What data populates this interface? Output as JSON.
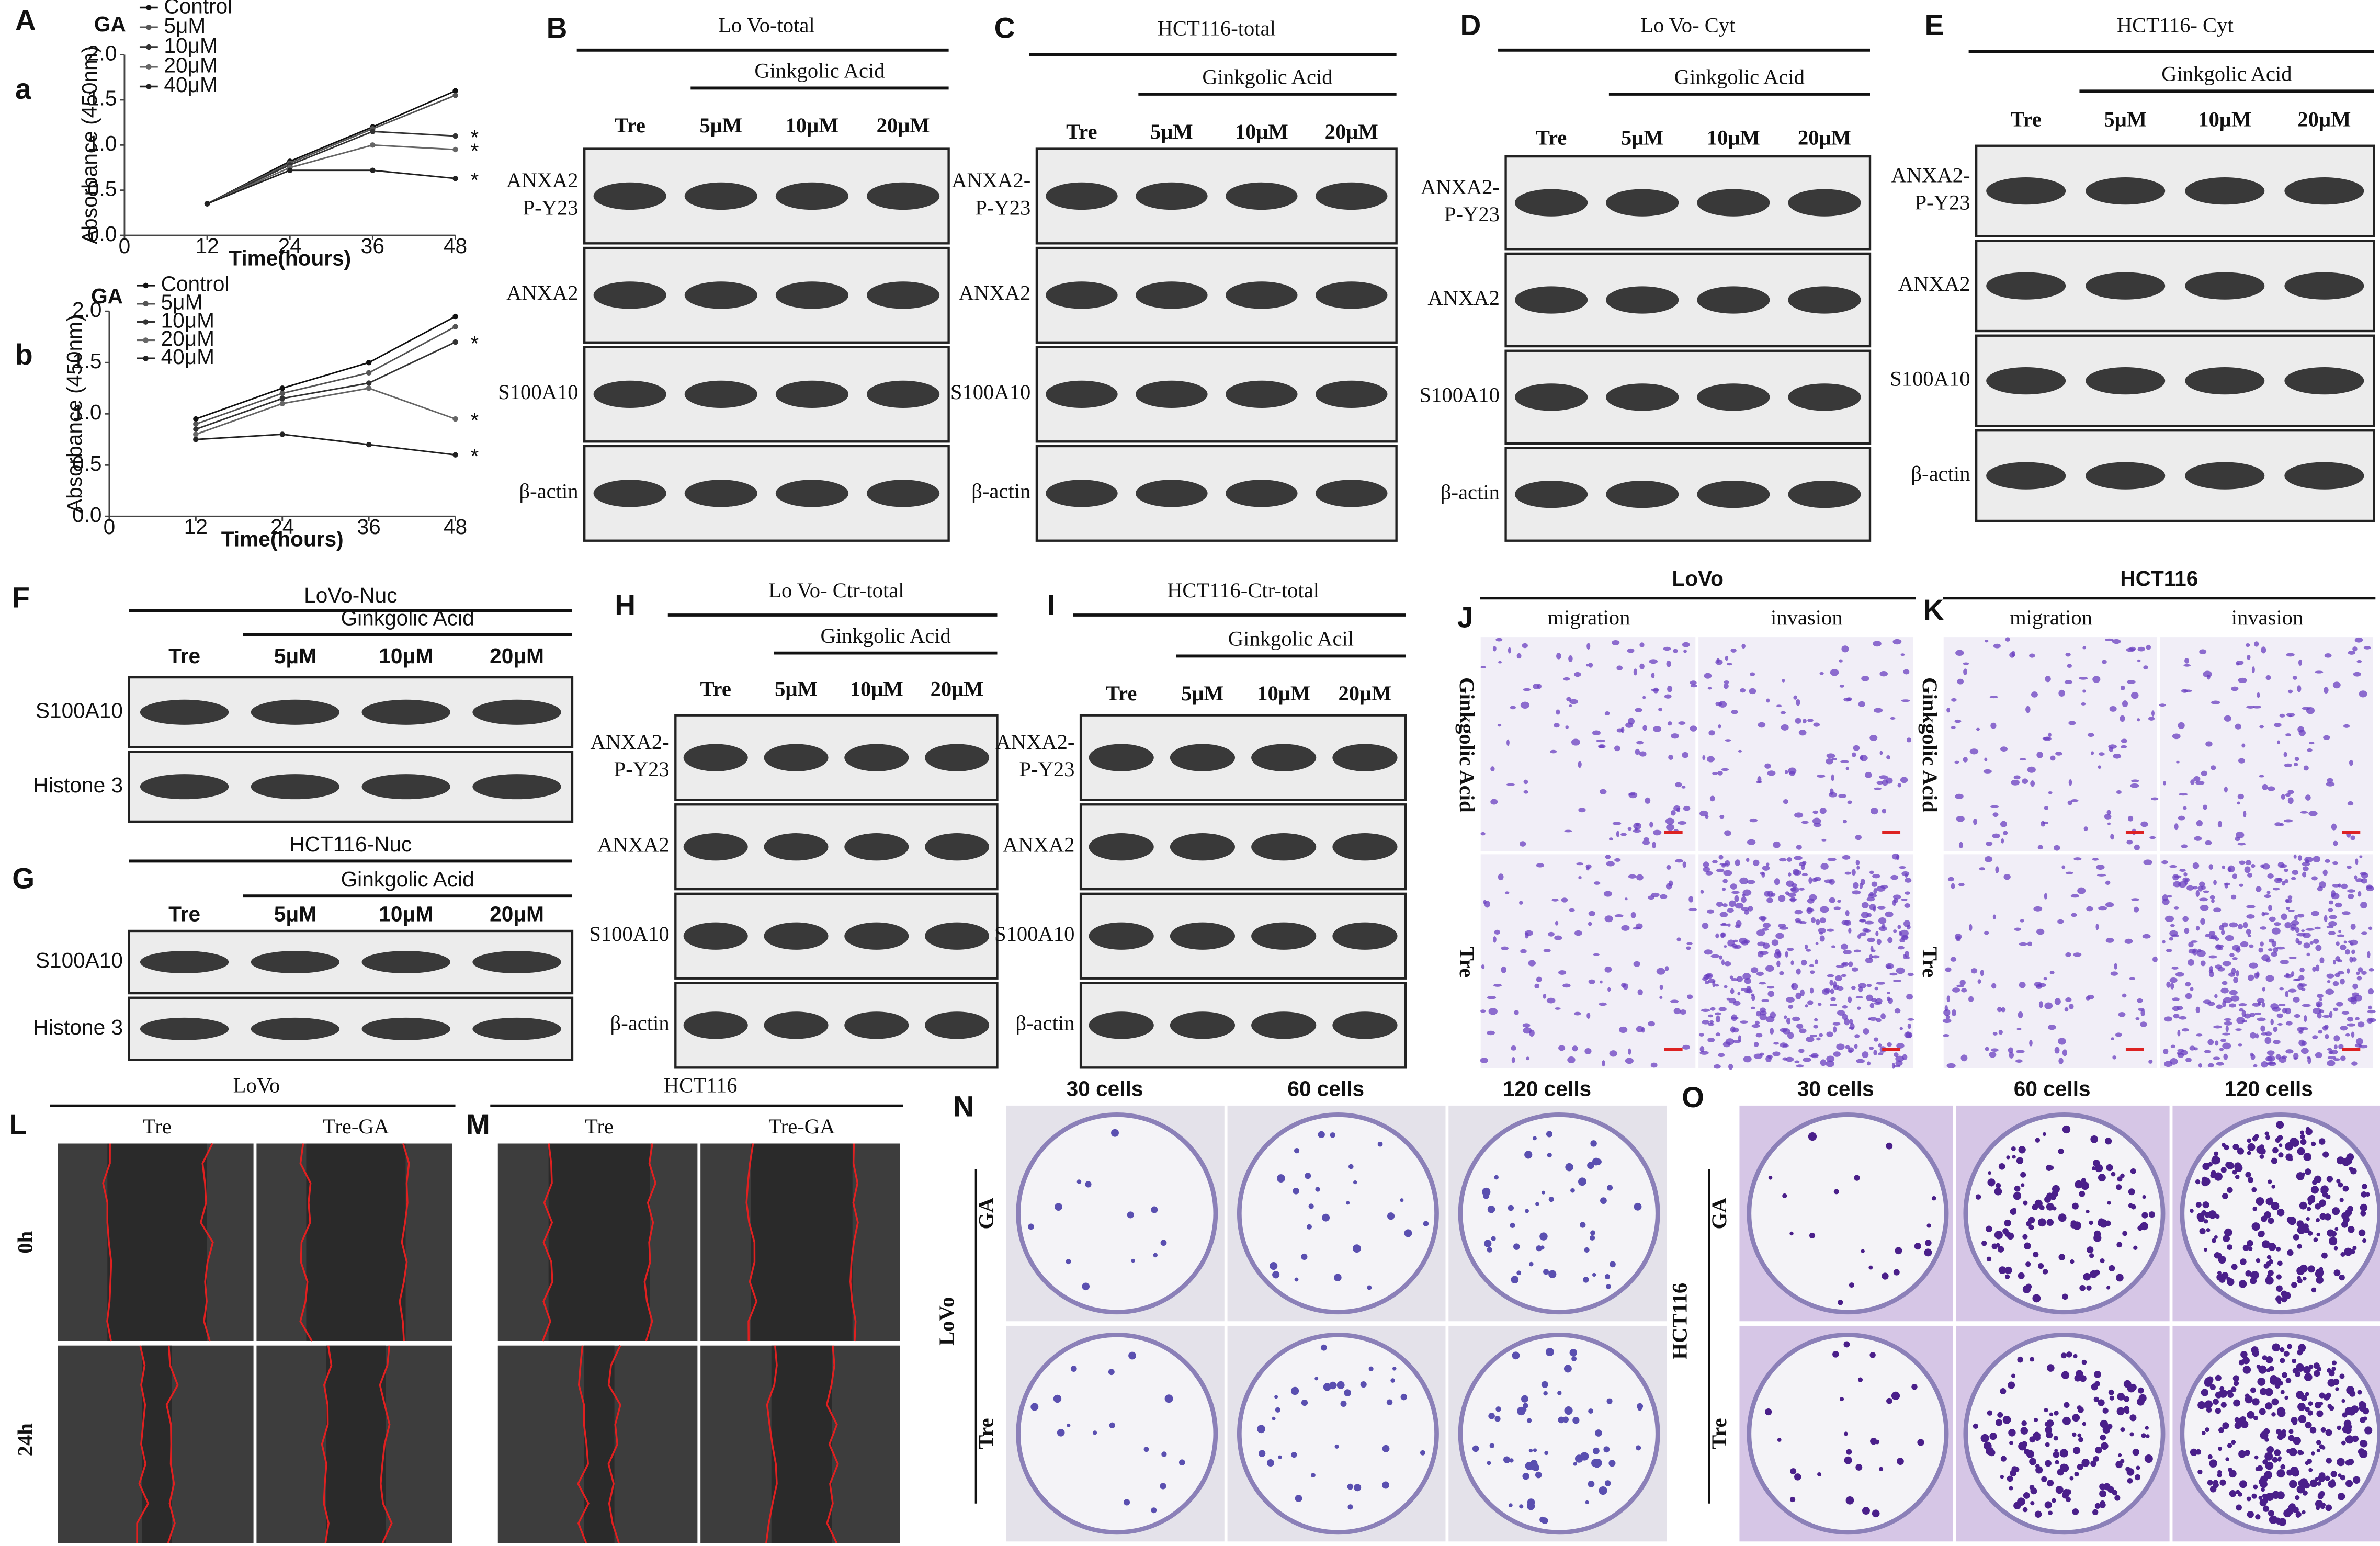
{
  "panels": {
    "A": {
      "letter": "A",
      "charts": [
        {
          "letter": "a",
          "type": "line",
          "legend_title": "GA",
          "x_label": "Time(hours)",
          "y_label": "Absorbance (450nm)",
          "x": [
            12,
            24,
            36,
            48
          ],
          "xlim": [
            0,
            48
          ],
          "xticks": [
            0,
            12,
            24,
            36,
            48
          ],
          "ylim": [
            0,
            2
          ],
          "yticks": [
            {
              "value": 0,
              "label": "0.0"
            },
            0.5,
            {
              "value": 1,
              "label": "1.0"
            },
            1.5,
            {
              "value": 2,
              "label": "2.0"
            }
          ],
          "series": [
            {
              "name": "Control",
              "color": "#111111",
              "values": [
                0.35,
                0.82,
                1.2,
                1.6
              ]
            },
            {
              "name": "5μM",
              "color": "#555555",
              "values": [
                0.35,
                0.8,
                1.18,
                1.55
              ]
            },
            {
              "name": "10μM",
              "color": "#333333",
              "values": [
                0.35,
                0.78,
                1.15,
                1.1
              ]
            },
            {
              "name": "20μM",
              "color": "#666666",
              "values": [
                0.35,
                0.75,
                1.0,
                0.95
              ]
            },
            {
              "name": "40μM",
              "color": "#222222",
              "values": [
                0.35,
                0.72,
                0.72,
                0.63
              ]
            }
          ],
          "annotations": [
            "*",
            "*",
            "*"
          ]
        },
        {
          "letter": "b",
          "type": "line",
          "legend_title": "GA",
          "x_label": "Time(hours)",
          "y_label": "Absorbance (450nm)",
          "x": [
            12,
            24,
            36,
            48
          ],
          "xlim": [
            0,
            48
          ],
          "xticks": [
            0,
            12,
            24,
            36,
            48
          ],
          "ylim": [
            0,
            2
          ],
          "yticks": [
            {
              "value": 0,
              "label": "0.0"
            },
            0.5,
            {
              "value": 1,
              "label": "1.0"
            },
            1.5,
            {
              "value": 2,
              "label": "2.0"
            }
          ],
          "series": [
            {
              "name": "Control",
              "color": "#111111",
              "values": [
                0.95,
                1.25,
                1.5,
                1.95
              ]
            },
            {
              "name": "5μM",
              "color": "#555555",
              "values": [
                0.9,
                1.2,
                1.4,
                1.85
              ]
            },
            {
              "name": "10μM",
              "color": "#333333",
              "values": [
                0.85,
                1.15,
                1.3,
                1.7
              ]
            },
            {
              "name": "20μM",
              "color": "#666666",
              "values": [
                0.8,
                1.1,
                1.25,
                0.95
              ]
            },
            {
              "name": "40μM",
              "color": "#222222",
              "values": [
                0.75,
                0.8,
                0.7,
                0.6
              ]
            }
          ],
          "annotations": [
            "*",
            "*",
            "*"
          ]
        }
      ]
    },
    "B": {
      "letter": "B",
      "title": "Lo Vo-total",
      "treatment": "Ginkgolic Acid",
      "lanes": [
        "Tre",
        "5μM",
        "10μM",
        "20μM"
      ],
      "rows": [
        [
          "ANXA2",
          "P-Y23"
        ],
        [
          "ANXA2"
        ],
        [
          "S100A10"
        ],
        [
          "β-actin"
        ]
      ]
    },
    "C": {
      "letter": "C",
      "title": "HCT116-total",
      "treatment": "Ginkgolic Acid",
      "lanes": [
        "Tre",
        "5μM",
        "10μM",
        "20μM"
      ],
      "rows": [
        [
          "ANXA2-",
          "P-Y23"
        ],
        [
          "ANXA2"
        ],
        [
          "S100A10"
        ],
        [
          "β-actin"
        ]
      ]
    },
    "D": {
      "letter": "D",
      "title": "Lo Vo- Cyt",
      "treatment": "Ginkgolic Acid",
      "lanes": [
        "Tre",
        "5μM",
        "10μM",
        "20μM"
      ],
      "rows": [
        [
          "ANXA2-",
          "P-Y23"
        ],
        [
          "ANXA2"
        ],
        [
          "S100A10"
        ],
        [
          "β-actin"
        ]
      ]
    },
    "E": {
      "letter": "E",
      "title": "HCT116- Cyt",
      "treatment": "Ginkgolic Acid",
      "lanes": [
        "Tre",
        "5μM",
        "10μM",
        "20μM"
      ],
      "rows": [
        [
          "ANXA2-",
          "P-Y23"
        ],
        [
          "ANXA2"
        ],
        [
          "S100A10"
        ],
        [
          "β-actin"
        ]
      ]
    },
    "F": {
      "letter": "F",
      "title": "LoVo-Nuc",
      "treatment": "Ginkgolic Acid",
      "lanes": [
        "Tre",
        "5μM",
        "10μM",
        "20μM"
      ],
      "rows": [
        [
          "S100A10"
        ],
        [
          "Histone 3"
        ]
      ]
    },
    "G": {
      "letter": "G",
      "title": "HCT116-Nuc",
      "treatment": "Ginkgolic Acid",
      "lanes": [
        "Tre",
        "5μM",
        "10μM",
        "20μM"
      ],
      "rows": [
        [
          "S100A10"
        ],
        [
          "Histone 3"
        ]
      ]
    },
    "H": {
      "letter": "H",
      "title": "Lo Vo- Ctr-total",
      "treatment": "Ginkgolic Acid",
      "lanes": [
        "Tre",
        "5μM",
        "10μM",
        "20μM"
      ],
      "rows": [
        [
          "ANXA2-",
          "P-Y23"
        ],
        [
          "ANXA2"
        ],
        [
          "S100A10"
        ],
        [
          "β-actin"
        ]
      ]
    },
    "I": {
      "letter": "I",
      "title": "HCT116-Ctr-total",
      "treatment": "Ginkgolic Acil",
      "lanes": [
        "Tre",
        "5μM",
        "10μM",
        "20μM"
      ],
      "rows": [
        [
          "ANXA2-",
          "P-Y23"
        ],
        [
          "ANXA2"
        ],
        [
          "S100A10"
        ],
        [
          "β-actin"
        ]
      ]
    },
    "J": {
      "letter": "J",
      "title": "LoVo",
      "columns": [
        "migration",
        "invasion"
      ],
      "rows": [
        "Ginkgolic Acid",
        "Tre"
      ]
    },
    "K": {
      "letter": "K",
      "title": "HCT116",
      "columns": [
        "migration",
        "invasion"
      ],
      "rows": [
        "Ginkgolic Acid",
        "Tre"
      ]
    },
    "L": {
      "letter": "L",
      "title": "LoVo",
      "columns": [
        "Tre",
        "Tre-GA"
      ],
      "rows": [
        "0h",
        "24h"
      ]
    },
    "M": {
      "letter": "M",
      "title": "HCT116",
      "columns": [
        "Tre",
        "Tre-GA"
      ],
      "rows": [
        "0h",
        "24h"
      ]
    },
    "N": {
      "letter": "N",
      "side_label": "LoVo",
      "columns": [
        "30 cells",
        "60 cells",
        "120 cells"
      ],
      "rows": [
        "GA",
        "Tre"
      ]
    },
    "O": {
      "letter": "O",
      "side_label": "HCT116",
      "columns": [
        "30 cells",
        "60 cells",
        "120 cells"
      ],
      "rows": [
        "GA",
        "Tre"
      ]
    }
  }
}
